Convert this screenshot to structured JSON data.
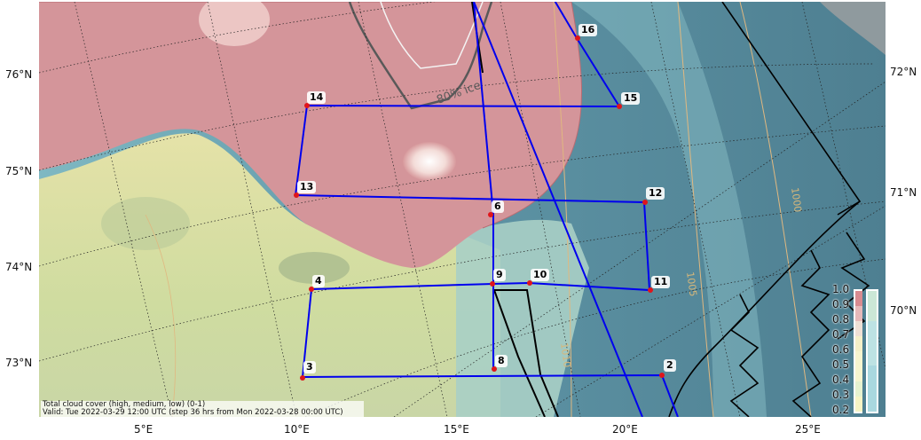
{
  "left_lat_labels": [
    "76°N",
    "75°N",
    "74°N",
    "73°N"
  ],
  "right_lat_labels": [
    "72°N",
    "71°N",
    "70°N"
  ],
  "lon_labels": [
    "5°E",
    "10°E",
    "15°E",
    "20°E",
    "25°E"
  ],
  "waypoints": [
    "2",
    "3",
    "4",
    "6",
    "8",
    "9",
    "10",
    "11",
    "12",
    "13",
    "14",
    "15",
    "16"
  ],
  "contour_labels": [
    "80% ice",
    "1000",
    "1005",
    "1010"
  ],
  "colorbar": {
    "ticks": [
      "1.0",
      "0.9",
      "0.8",
      "0.7",
      "0.6",
      "0.5",
      "0.4",
      "0.3",
      "0.2"
    ],
    "colors": [
      "#d88b90",
      "#e5b9b9",
      "#eee0d5",
      "#f4f0c8",
      "#f7f5cf",
      "#e6f2cf",
      "#cbe7d6",
      "#bde2e3",
      "#a9d8df"
    ]
  },
  "info": {
    "line1": "Total cloud cover (high, medium, low) (0-1)",
    "line2": "Valid: Tue 2022-03-29 12:00 UTC (step 36 hrs from Mon 2022-03-28 00:00 UTC)"
  },
  "colors": {
    "flight_track": "#0000ee",
    "waypoint": "#e0151b"
  }
}
